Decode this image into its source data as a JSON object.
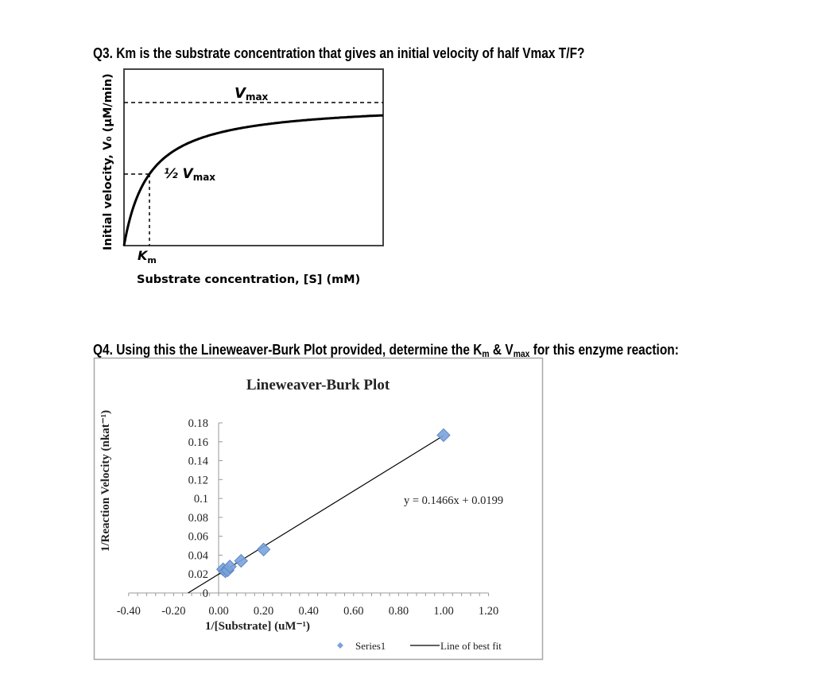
{
  "q3": {
    "prefix": "Q3. Km is the substrate concentration that gives an initial velocity of half Vmax T/F?"
  },
  "q4": {
    "prefix": "Q4. Using this the Lineweaver-Burk Plot provided, determine the K",
    "sub1": "m",
    "mid": " & V",
    "sub2": "max",
    "suffix": " for this enzyme reaction:"
  },
  "michaelis_figure": {
    "ylabel": "Initial velocity, V₀ (µM/min)",
    "xlabel": "Substrate concentration, [S] (mM)",
    "vmax_label": "V",
    "vmax_sub": "max",
    "half_label": "½ V",
    "half_sub": "max",
    "km_label": "K",
    "km_sub": "m"
  },
  "chart_data": [
    {
      "type": "line",
      "description_free": true,
      "xlabel": "Substrate concentration, [S] (mM)",
      "ylabel": "Initial velocity, V₀ (µM/min)",
      "annotations": [
        "Vmax",
        "½ Vmax",
        "Km"
      ],
      "curve": "michaelis-menten",
      "grid": false
    },
    {
      "type": "scatter",
      "title": "Lineweaver-Burk Plot",
      "xlabel": "1/[Substrate] (uM⁻¹)",
      "ylabel": "1/Reaction Velocity (nkat⁻¹)",
      "xlim": [
        -0.4,
        1.2
      ],
      "ylim": [
        0,
        0.18
      ],
      "x_ticks": [
        "-0.40",
        "-0.20",
        "0.00",
        "0.20",
        "0.40",
        "0.60",
        "0.80",
        "1.00",
        "1.20"
      ],
      "y_ticks": [
        "0",
        "0.02",
        "0.04",
        "0.06",
        "0.08",
        "0.1",
        "0.12",
        "0.14",
        "0.16",
        "0.18"
      ],
      "series": [
        {
          "name": "Series1",
          "color": "#7aa3dc",
          "marker": "diamond",
          "x": [
            0.02,
            0.03,
            0.04,
            0.05,
            0.1,
            0.2,
            1.0
          ],
          "y": [
            0.025,
            0.023,
            0.024,
            0.028,
            0.034,
            0.046,
            0.167
          ]
        }
      ],
      "trendline": {
        "name": "Line of best fit",
        "slope": 0.1466,
        "intercept": 0.0199,
        "equation": "y = 0.1466x + 0.0199",
        "color": "#000000"
      },
      "legend": "bottom-right",
      "grid": false
    }
  ]
}
